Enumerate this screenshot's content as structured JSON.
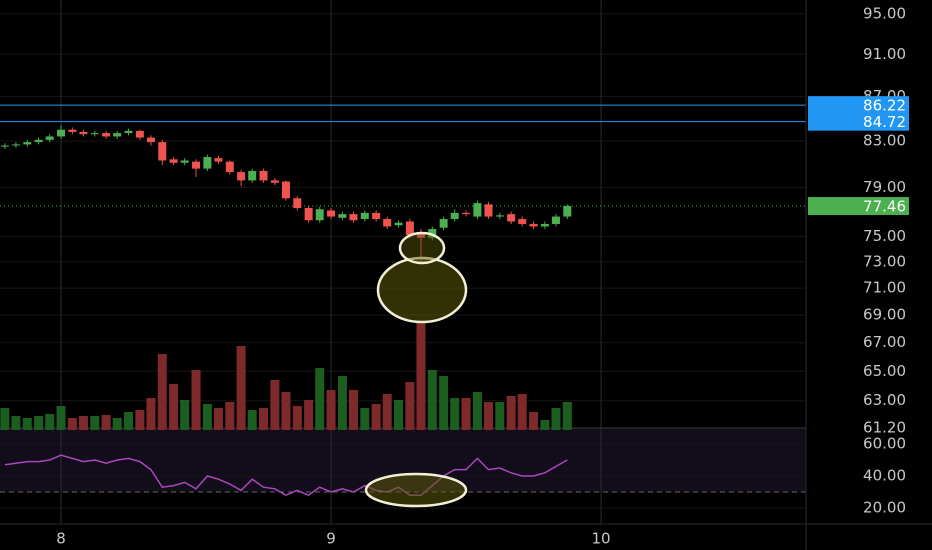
{
  "chart_data": {
    "type": "candlestick",
    "x": [
      7.792,
      7.833,
      7.875,
      7.917,
      7.958,
      8,
      8.042,
      8.083,
      8.125,
      8.167,
      8.208,
      8.25,
      8.292,
      8.333,
      8.375,
      8.417,
      8.458,
      8.5,
      8.542,
      8.583,
      8.625,
      8.667,
      8.708,
      8.75,
      8.792,
      8.833,
      8.875,
      8.917,
      8.958,
      9,
      9.042,
      9.083,
      9.125,
      9.167,
      9.208,
      9.25,
      9.292,
      9.333,
      9.375,
      9.417,
      9.458,
      9.5,
      9.542,
      9.583,
      9.625,
      9.667,
      9.708,
      9.75,
      9.792,
      9.833,
      9.875
    ],
    "open": [
      82.5,
      82.6,
      82.7,
      82.9,
      83.1,
      83.4,
      84.0,
      83.8,
      83.6,
      83.7,
      83.4,
      83.7,
      83.9,
      83.3,
      82.9,
      81.4,
      81.1,
      81.2,
      80.6,
      81.5,
      81.2,
      80.3,
      79.6,
      80.4,
      79.6,
      79.5,
      78.1,
      77.3,
      76.3,
      77.1,
      76.5,
      76.8,
      76.4,
      76.9,
      76.4,
      75.9,
      76.2,
      75.2,
      74.9,
      75.7,
      76.4,
      76.9,
      76.6,
      77.6,
      76.6,
      76.8,
      76.4,
      76.0,
      75.8,
      76.0,
      76.6
    ],
    "high": [
      82.8,
      82.9,
      83.1,
      83.3,
      83.6,
      84.4,
      84.2,
      84.0,
      83.9,
      83.9,
      83.9,
      84.1,
      84.0,
      83.5,
      83.1,
      81.6,
      81.5,
      81.4,
      81.8,
      81.7,
      81.3,
      80.5,
      80.6,
      80.6,
      79.8,
      79.6,
      78.3,
      77.5,
      77.4,
      77.3,
      77.0,
      77.0,
      77.1,
      77.1,
      76.6,
      76.3,
      76.4,
      75.6,
      75.8,
      76.6,
      77.2,
      77.1,
      77.9,
      77.8,
      76.9,
      77.0,
      76.6,
      76.2,
      76.2,
      76.8,
      77.6
    ],
    "low": [
      82.3,
      82.4,
      82.5,
      82.7,
      82.9,
      83.2,
      83.6,
      83.4,
      83.4,
      83.2,
      83.2,
      83.5,
      83.1,
      82.6,
      80.9,
      80.9,
      80.9,
      79.9,
      80.4,
      81.0,
      80.1,
      79.1,
      79.4,
      79.4,
      79.2,
      77.9,
      77.1,
      76.1,
      76.1,
      76.4,
      76.3,
      76.1,
      76.2,
      76.2,
      75.6,
      75.7,
      74.9,
      72.8,
      74.7,
      75.5,
      76.2,
      76.6,
      76.4,
      76.4,
      76.4,
      76.0,
      75.8,
      75.6,
      75.6,
      75.8,
      76.4
    ],
    "close": [
      82.6,
      82.7,
      82.9,
      83.1,
      83.4,
      84.0,
      83.8,
      83.6,
      83.7,
      83.4,
      83.7,
      83.9,
      83.3,
      82.9,
      81.3,
      81.1,
      81.3,
      80.6,
      81.6,
      81.2,
      80.3,
      79.6,
      80.4,
      79.6,
      79.4,
      78.1,
      77.3,
      76.3,
      77.2,
      76.6,
      76.8,
      76.3,
      76.9,
      76.4,
      75.8,
      76.1,
      75.1,
      74.9,
      75.6,
      76.4,
      76.9,
      76.8,
      77.7,
      76.6,
      76.7,
      76.2,
      76.0,
      75.8,
      76.0,
      76.6,
      77.46
    ],
    "volume": [
      22,
      14,
      12,
      14,
      16,
      24,
      12,
      14,
      14,
      15,
      12,
      18,
      20,
      32,
      76,
      46,
      30,
      60,
      26,
      22,
      28,
      84,
      20,
      22,
      50,
      38,
      24,
      30,
      62,
      40,
      54,
      40,
      22,
      26,
      36,
      30,
      48,
      108,
      60,
      54,
      32,
      32,
      38,
      28,
      28,
      34,
      36,
      18,
      10,
      22,
      28
    ],
    "rsi": [
      47,
      48,
      49,
      49,
      50,
      53,
      51,
      49,
      50,
      48,
      50,
      51,
      49,
      44,
      33,
      34,
      36,
      32,
      40,
      38,
      35,
      31,
      38,
      33,
      32,
      28,
      31,
      28,
      33,
      30,
      32,
      30,
      34,
      31,
      30,
      33,
      28,
      28,
      34,
      40,
      44,
      44,
      51,
      44,
      45,
      42,
      40,
      40,
      42,
      46,
      50
    ],
    "up_color": "#4caf50",
    "down_color": "#f05350",
    "volume_up_color": "#1b5e20",
    "volume_down_color": "#7f2a2a",
    "rsi_color": "#ab47bc",
    "xlim": [
      7.774,
      10.759
    ],
    "xticks": [
      8,
      9,
      10
    ],
    "ylim": [
      61.2,
      96.4
    ],
    "log_scale": true,
    "yticks": [
      {
        "value": 95,
        "label": "95.00"
      },
      {
        "value": 91,
        "label": "91.00"
      },
      {
        "value": 87,
        "label": "87.00"
      },
      {
        "value": 83,
        "label": "83.00"
      },
      {
        "value": 79,
        "label": "79.00"
      },
      {
        "value": 75,
        "label": "75.00"
      },
      {
        "value": 73,
        "label": "73.00"
      },
      {
        "value": 71,
        "label": "71.00"
      },
      {
        "value": 69,
        "label": "69.00"
      },
      {
        "value": 67,
        "label": "67.00"
      },
      {
        "value": 65,
        "label": "65.00"
      },
      {
        "value": 63,
        "label": "63.00"
      },
      {
        "value": 61.2,
        "label": "61.20"
      }
    ],
    "volume_lim": [
      0,
      140
    ],
    "rsi_lim": [
      10,
      70
    ],
    "rsi_ticks": [
      {
        "value": 60,
        "label": "60.00"
      },
      {
        "value": 40,
        "label": "40.00"
      },
      {
        "value": 20,
        "label": "20.00"
      }
    ],
    "rsi_band": [
      30,
      70
    ],
    "price_lines": [
      {
        "value": 86.22,
        "color": "#2196f3",
        "style": "solid"
      },
      {
        "value": 84.72,
        "color": "#2196f3",
        "style": "solid"
      },
      {
        "value": 77.46,
        "color": "#4caf50",
        "style": "dotted"
      }
    ],
    "grid": true
  }
}
